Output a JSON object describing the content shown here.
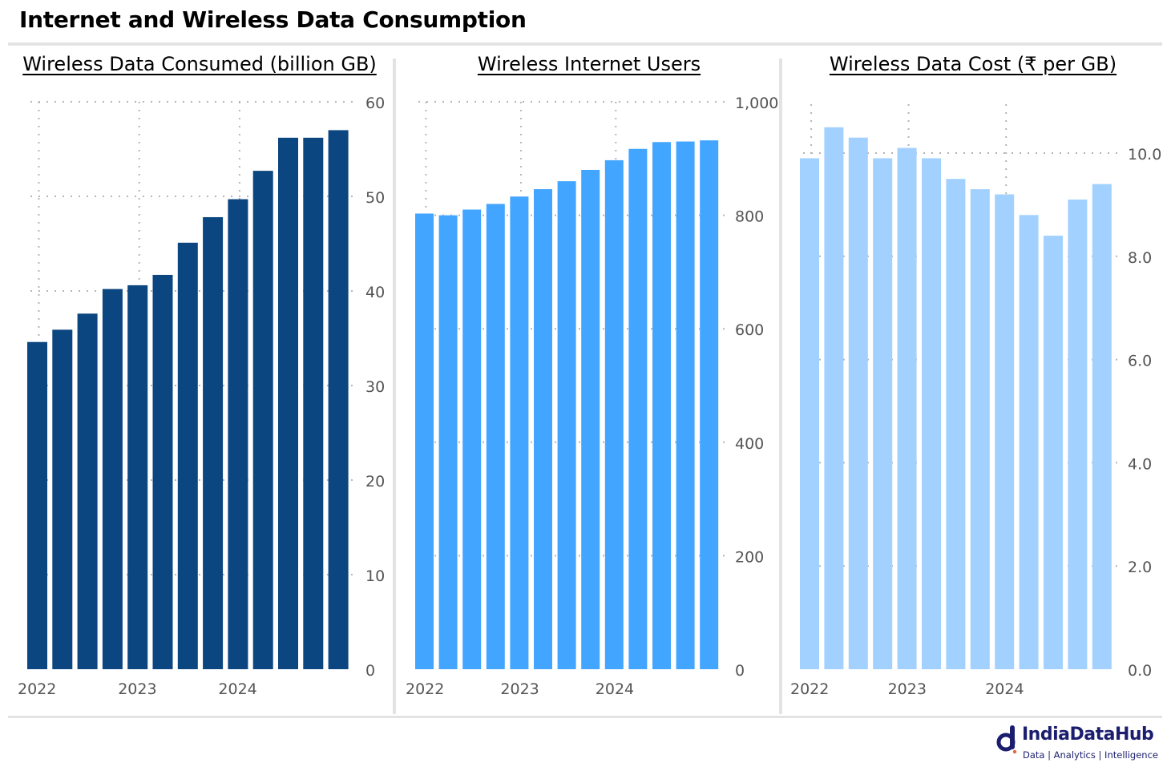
{
  "title": "Internet and Wireless Data Consumption",
  "brand": {
    "name": "IndiaDataHub",
    "tagline": "Data | Analytics | Intelligence",
    "color": "#1b1e6e"
  },
  "chart_data": [
    {
      "type": "bar",
      "title": "Wireless Data Consumed (billion GB)",
      "color": "#0b4680",
      "x_tick_labels": [
        "2022",
        "2023",
        "2024"
      ],
      "values": [
        34.6,
        35.9,
        37.6,
        40.2,
        40.6,
        41.7,
        45.1,
        47.8,
        49.7,
        52.7,
        56.2,
        56.2,
        57.0
      ],
      "ylim": [
        0,
        60
      ],
      "yticks": [
        "60",
        "50",
        "40",
        "30",
        "20",
        "10",
        "0"
      ],
      "grid": true
    },
    {
      "type": "bar",
      "title": "Wireless Internet Users",
      "color": "#42a5ff",
      "x_tick_labels": [
        "2022",
        "2023",
        "2024"
      ],
      "values": [
        803,
        800,
        810,
        820,
        833,
        846,
        860,
        880,
        897,
        917,
        929,
        930,
        932
      ],
      "ylim": [
        0,
        1000
      ],
      "yticks": [
        "1,000",
        "800",
        "600",
        "400",
        "200",
        "0"
      ],
      "grid": true
    },
    {
      "type": "bar",
      "title": "Wireless Data Cost (₹ per GB)",
      "color": "#a3d1ff",
      "x_tick_labels": [
        "2022",
        "2023",
        "2024"
      ],
      "values": [
        9.9,
        10.5,
        10.3,
        9.9,
        10.1,
        9.9,
        9.5,
        9.3,
        9.2,
        8.8,
        8.4,
        9.1,
        9.4
      ],
      "ylim": [
        0,
        11
      ],
      "yticks": [
        "10.0",
        "8.0",
        "6.0",
        "4.0",
        "2.0",
        "0.0"
      ],
      "grid": true
    }
  ]
}
